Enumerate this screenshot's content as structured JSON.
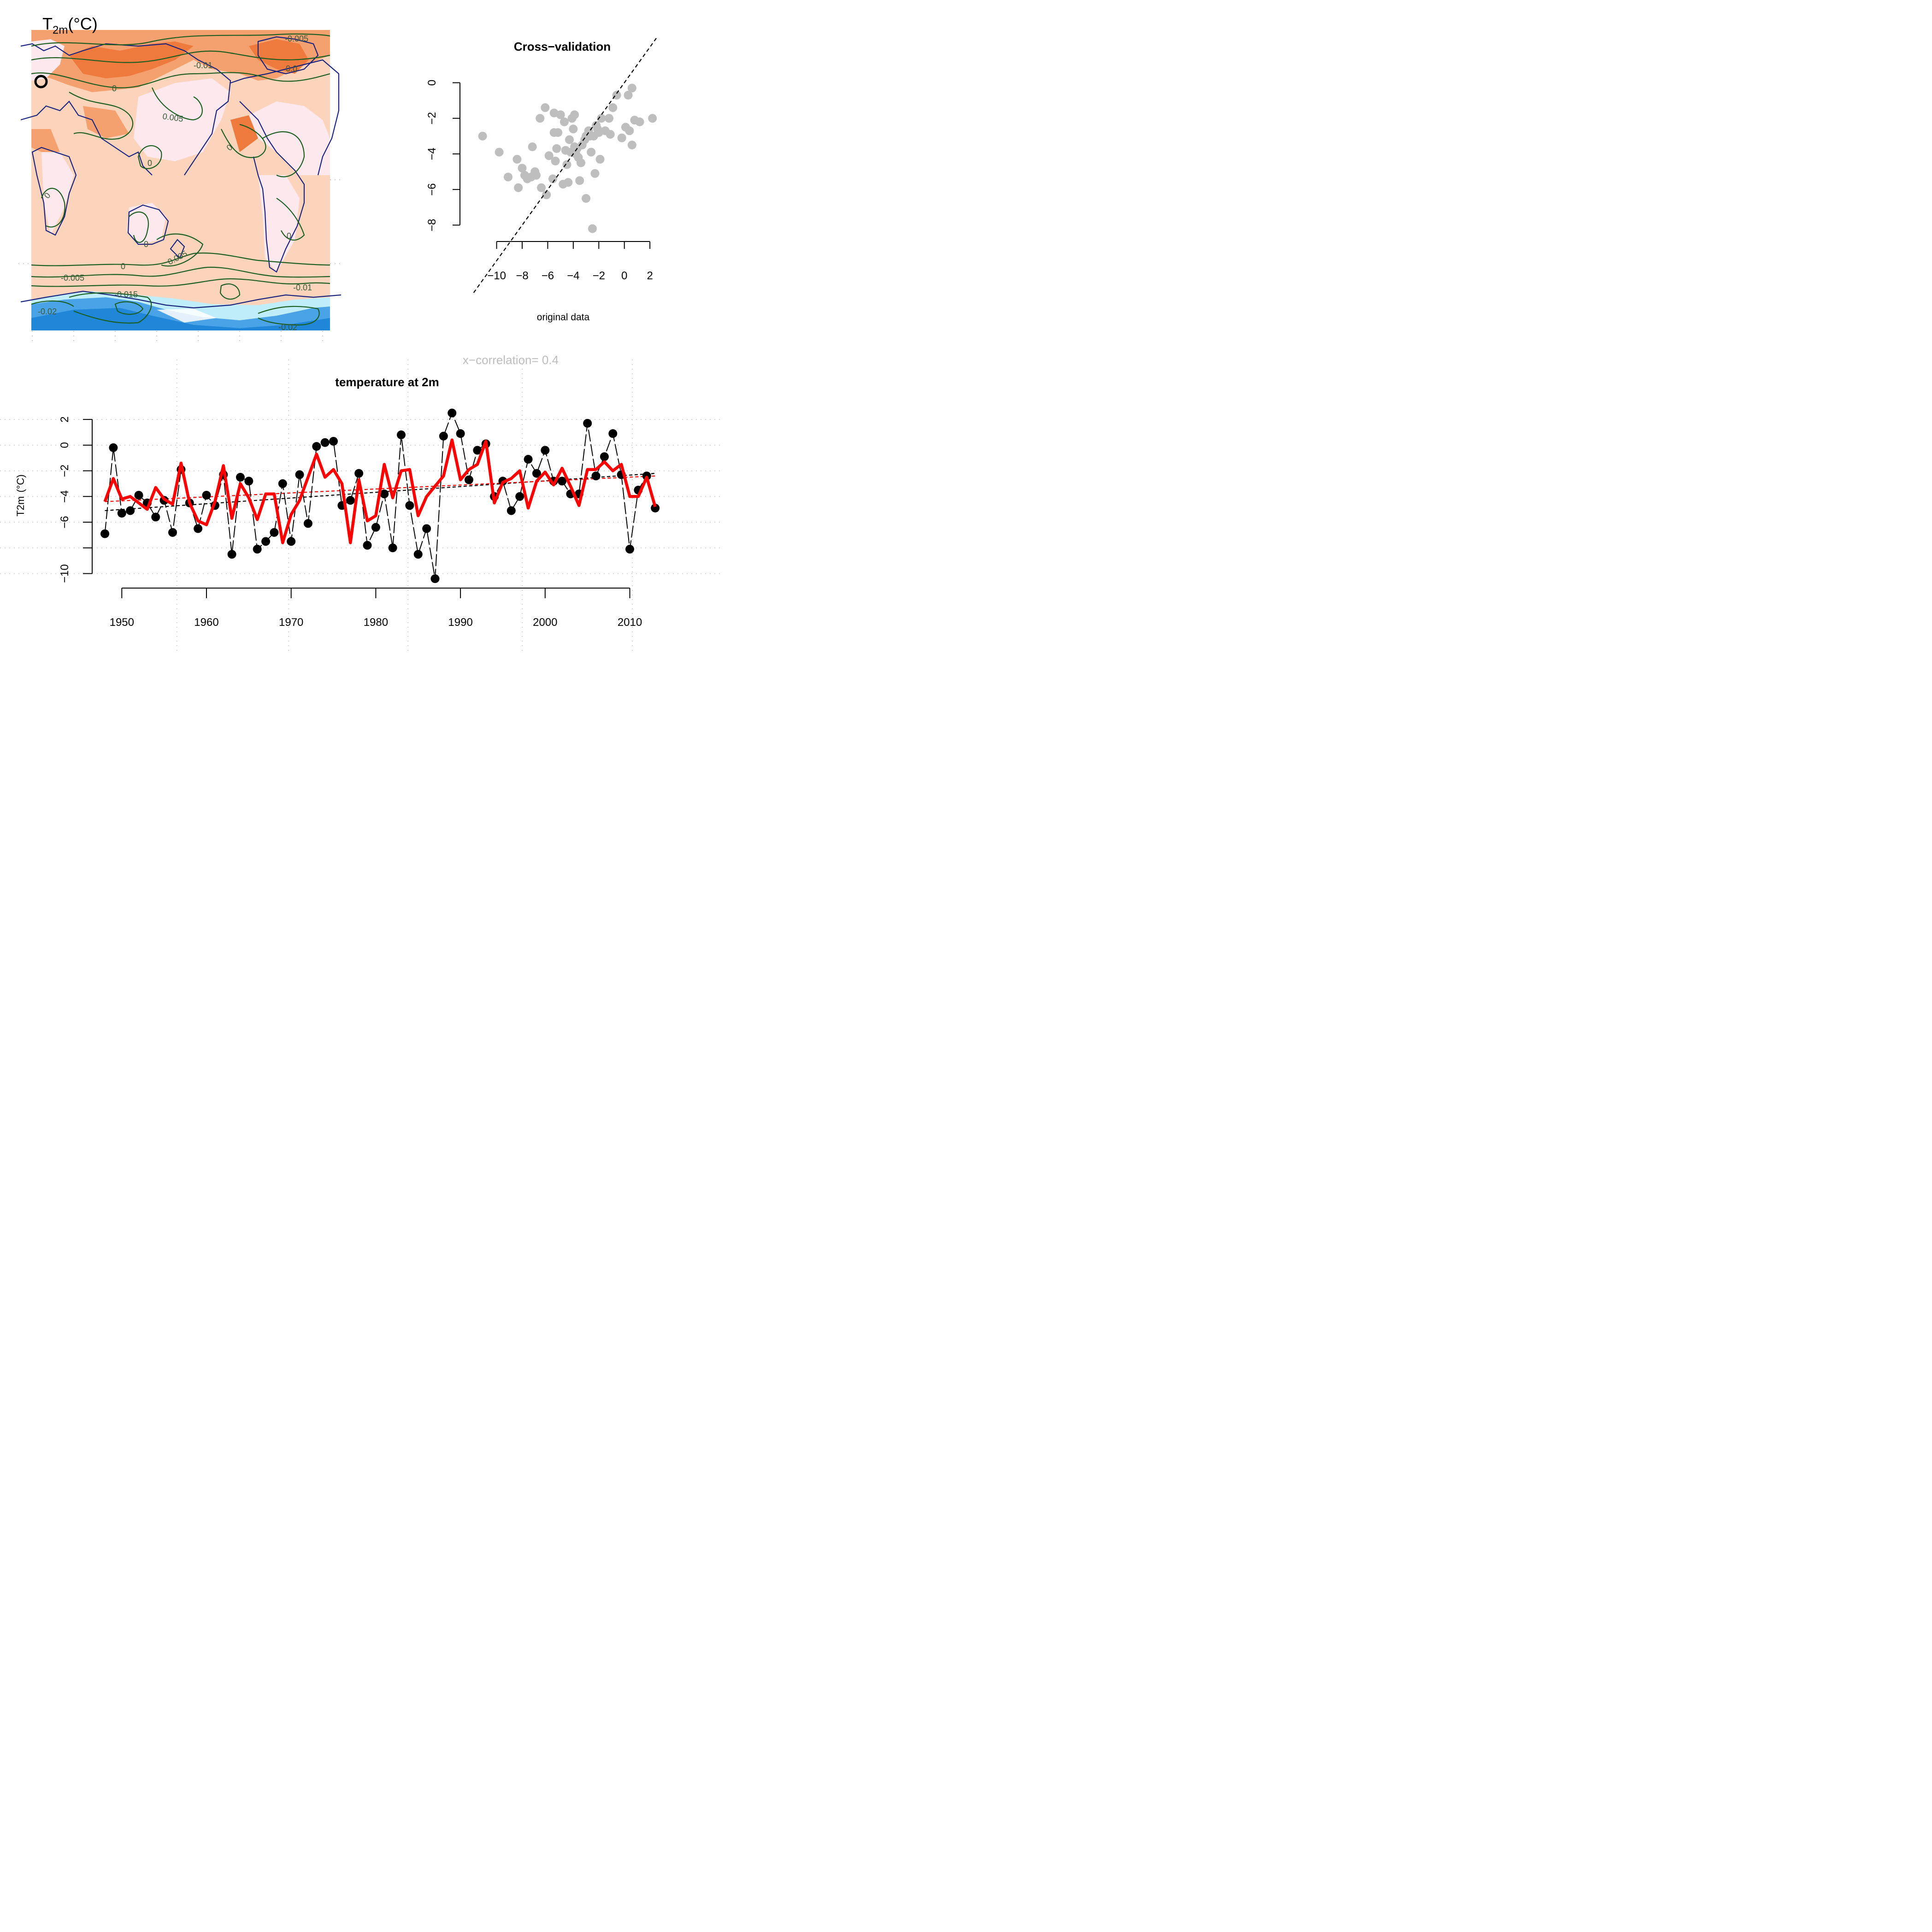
{
  "map": {
    "title_main": "T",
    "title_sub": "2m",
    "title_unit": "(°C)",
    "marker_label": "O",
    "contour_labels": [
      "-0.005",
      "-0.01",
      "0.0",
      "0",
      "0.005",
      "0",
      "0",
      "0",
      "0",
      "0",
      "0.005",
      "0",
      "-0.005",
      "-0.015",
      "-0.01",
      "-0.02",
      "-0.02"
    ],
    "colors": {
      "ocean": "#fcd3bb",
      "warm": "#f5a06f",
      "hot": "#ee7a3e",
      "land_light": "#fde8ee",
      "cold": "#4aa3e6",
      "colder": "#1f86d8",
      "ice": "#bfeefa",
      "contour": "#1b5e20",
      "coast": "#1a237e",
      "border": "#f4b6c8"
    }
  },
  "chart_data": [
    {
      "type": "scatter",
      "title": "Cross−validation",
      "xlabel": "original data",
      "ylabel": "",
      "xlim": [
        -11.5,
        2.5
      ],
      "ylim": [
        -8.3,
        1.1
      ],
      "xticks": [
        -10,
        -8,
        -6,
        -4,
        -2,
        0,
        2
      ],
      "yticks": [
        0,
        -2,
        -4,
        -6,
        -8
      ],
      "tick_labels_x": [
        "−10",
        "−8",
        "−6",
        "−4",
        "−2",
        "0",
        "2"
      ],
      "tick_labels_y": [
        "0",
        "−2",
        "−4",
        "−6",
        "−8"
      ],
      "point_color": "#bebebe",
      "x": [
        -11.1,
        -9.8,
        -9.1,
        -8.4,
        -7.6,
        -7.2,
        -6.5,
        -5.5,
        -5.2,
        -4.6,
        -3.9,
        -3.5,
        -3.0,
        -2.8,
        -2.5,
        -2.2,
        -1.8,
        -1.2,
        -0.6,
        0.1,
        0.4,
        0.6,
        0.8,
        1.2,
        2.2,
        0.3,
        -0.9,
        -1.5,
        -2.4,
        -2.0,
        -3.4,
        -4.1,
        -4.3,
        -4.5,
        -5.0,
        -5.5,
        -5.9,
        -6.1,
        -6.6,
        -7.0,
        -7.8,
        -8.3,
        -3.8,
        -3.3,
        -2.7,
        -4.0,
        -3.6,
        -4.8,
        -3.1,
        -2.6,
        -4.4,
        -5.3,
        -6.9,
        -7.3,
        -8.0,
        -3.9,
        -5.6,
        -2.3,
        -1.9,
        -4.2,
        -3.0,
        -0.2,
        0.6,
        -1.1,
        -5.4,
        -4.7,
        -3.7,
        -6.2,
        -2.1
      ],
      "y": [
        -3.0,
        -3.9,
        -5.3,
        -4.3,
        -5.4,
        -3.6,
        -5.9,
        -1.7,
        -2.8,
        -3.8,
        -3.6,
        -5.5,
        -6.5,
        -2.7,
        -8.2,
        -2.4,
        -2.0,
        -2.0,
        -0.7,
        -2.5,
        -2.7,
        -3.5,
        -2.1,
        -2.2,
        -2.0,
        -0.7,
        -1.4,
        -2.7,
        -3.0,
        -2.8,
        -4.5,
        -2.0,
        -3.2,
        -4.6,
        -1.8,
        -2.8,
        -4.1,
        -6.3,
        -2.0,
        -5.0,
        -5.2,
        -5.9,
        -4.0,
        -3.5,
        -3.0,
        -2.6,
        -4.2,
        -5.7,
        -3.2,
        -3.9,
        -5.6,
        -3.7,
        -5.2,
        -5.3,
        -4.8,
        -1.8,
        -5.4,
        -5.1,
        -4.3,
        -3.9,
        -3.0,
        -3.1,
        -0.3,
        -2.9,
        -4.4,
        -2.2,
        -3.7,
        -1.4,
        -2.6
      ],
      "identity_line": true
    },
    {
      "type": "line",
      "title": "temperature at 2m",
      "annotation": "x−correlation= 0.4",
      "ylabel_main": "T2m",
      "ylabel_unit": "(°C)",
      "xlim": [
        1946.5,
        2014
      ],
      "ylim": [
        -10.7,
        2.9
      ],
      "xticks": [
        1950,
        1960,
        1970,
        1980,
        1990,
        2000,
        2010
      ],
      "yticks": [
        2,
        0,
        -2,
        -4,
        -6,
        -8,
        -10
      ],
      "tick_labels_x": [
        "1950",
        "1960",
        "1970",
        "1980",
        "1990",
        "2000",
        "2010"
      ],
      "tick_labels_y": [
        "2",
        "0",
        "−2",
        "−4",
        "−6",
        "",
        "−10"
      ],
      "x": [
        1948,
        1949,
        1950,
        1951,
        1952,
        1953,
        1954,
        1955,
        1956,
        1957,
        1958,
        1959,
        1960,
        1961,
        1962,
        1963,
        1964,
        1965,
        1966,
        1967,
        1968,
        1969,
        1970,
        1971,
        1972,
        1973,
        1974,
        1975,
        1976,
        1977,
        1978,
        1979,
        1980,
        1981,
        1982,
        1983,
        1984,
        1985,
        1986,
        1987,
        1988,
        1989,
        1990,
        1991,
        1992,
        1993,
        1994,
        1995,
        1996,
        1997,
        1998,
        1999,
        2000,
        2001,
        2002,
        2003,
        2004,
        2005,
        2006,
        2007,
        2008,
        2009,
        2010,
        2011,
        2012,
        2013
      ],
      "series": [
        {
          "color": "#000000",
          "style": "points-dashed",
          "values": [
            -6.9,
            -0.2,
            -5.3,
            -5.1,
            -3.9,
            -4.5,
            -5.6,
            -4.3,
            -6.8,
            -1.9,
            -4.5,
            -6.5,
            -3.9,
            -4.7,
            -2.3,
            -8.5,
            -2.5,
            -2.8,
            -8.1,
            -7.5,
            -6.8,
            -3.0,
            -7.5,
            -2.3,
            -6.1,
            -0.1,
            0.2,
            0.3,
            -4.7,
            -4.3,
            -2.2,
            -7.8,
            -6.4,
            -3.8,
            -8.0,
            0.8,
            -4.7,
            -8.5,
            -6.5,
            -10.4,
            0.7,
            2.5,
            0.9,
            -2.7,
            -0.4,
            0.1,
            -4.0,
            -2.8,
            -5.1,
            -4.0,
            -1.1,
            -2.2,
            -0.4,
            -2.8,
            -2.8,
            -3.8,
            -3.8,
            1.7,
            -2.4,
            -0.9,
            0.9,
            -2.3,
            -8.1,
            -3.5,
            -2.4,
            -4.9
          ]
        },
        {
          "color": "#ff0000",
          "style": "thick-line",
          "values": [
            -4.4,
            -2.6,
            -4.2,
            -4.0,
            -4.5,
            -5.0,
            -3.3,
            -4.2,
            -4.6,
            -1.4,
            -4.5,
            -5.9,
            -6.2,
            -4.4,
            -1.6,
            -5.7,
            -3.0,
            -4.1,
            -5.8,
            -3.8,
            -3.8,
            -7.6,
            -5.4,
            -4.3,
            -2.5,
            -0.7,
            -2.5,
            -1.9,
            -3.0,
            -7.6,
            -2.7,
            -5.9,
            -5.5,
            -1.5,
            -4.1,
            -2.0,
            -1.9,
            -5.5,
            -4.0,
            -3.2,
            -2.4,
            0.4,
            -2.7,
            -1.9,
            -1.5,
            0.3,
            -4.5,
            -2.9,
            -2.6,
            -2.0,
            -4.9,
            -2.8,
            -2.1,
            -3.1,
            -1.8,
            -3.2,
            -4.7,
            -1.9,
            -1.9,
            -1.3,
            -2.0,
            -1.5,
            -4.0,
            -4.0,
            -2.5,
            -4.8
          ]
        }
      ],
      "trend_black": [
        [
          1948,
          -5.1
        ],
        [
          2013,
          -2.2
        ]
      ],
      "trend_red": [
        [
          1948,
          -4.4
        ],
        [
          2013,
          -2.4
        ]
      ]
    }
  ]
}
